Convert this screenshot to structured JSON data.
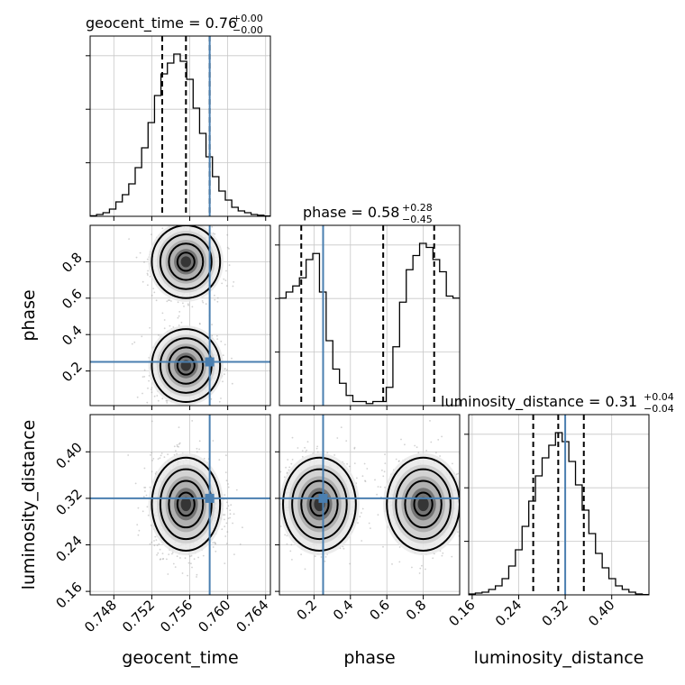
{
  "chart_data": {
    "type": "corner",
    "parameters": [
      "geocent_time",
      "phase",
      "luminosity_distance"
    ],
    "axis_labels": {
      "geocent_time": "geocent_time",
      "phase": "phase",
      "luminosity_distance": "luminosity_distance"
    },
    "titles": {
      "geocent_time": {
        "text": "geocent_time = 0.76",
        "sup": "+0.00",
        "sub": "−0.00"
      },
      "phase": {
        "text": "phase = 0.58",
        "sup": "+0.28",
        "sub": "−0.45"
      },
      "luminosity_distance": {
        "text": "luminosity_distance = 0.31",
        "sup": "+0.04",
        "sub": "−0.04"
      }
    },
    "ranges": {
      "geocent_time": [
        0.7455,
        0.7645
      ],
      "phase": [
        0.01,
        1.0
      ],
      "luminosity_distance": [
        0.154,
        0.464
      ]
    },
    "ticks": {
      "geocent_time": [
        0.748,
        0.752,
        0.756,
        0.76,
        0.764
      ],
      "phase": [
        0.2,
        0.4,
        0.6,
        0.8
      ],
      "luminosity_distance": [
        0.16,
        0.24,
        0.32,
        0.4
      ]
    },
    "tick_labels": {
      "geocent_time": [
        "0.748",
        "0.752",
        "0.756",
        "0.760",
        "0.764"
      ],
      "phase": [
        "0.2",
        "0.4",
        "0.6",
        "0.8"
      ],
      "luminosity_distance": [
        "0.16",
        "0.24",
        "0.32",
        "0.40"
      ]
    },
    "truths": {
      "geocent_time": 0.7581,
      "phase": 0.25,
      "luminosity_distance": 0.32
    },
    "quantiles": {
      "geocent_time": [
        0.7531,
        0.7556,
        0.7581
      ],
      "phase": [
        0.13,
        0.58,
        0.86
      ],
      "luminosity_distance": [
        0.265,
        0.308,
        0.352
      ]
    },
    "histograms": {
      "geocent_time": {
        "edges": [
          0.7455,
          0.7645
        ],
        "counts": [
          0.3,
          1,
          2,
          4,
          8,
          12,
          18,
          27,
          38,
          52,
          67,
          79,
          85,
          90,
          86,
          76,
          60,
          46,
          33,
          22,
          14,
          9,
          5,
          3,
          2,
          1,
          0.6,
          0.2
        ]
      },
      "phase": {
        "edges": [
          0.01,
          1.0
        ],
        "counts": [
          53,
          56,
          59,
          63,
          72,
          75,
          56,
          32,
          18,
          11,
          5,
          2,
          2,
          1,
          2,
          2,
          9,
          29,
          51,
          67,
          74,
          80,
          78,
          72,
          66,
          54,
          53
        ]
      },
      "luminosity_distance": {
        "edges": [
          0.154,
          0.464
        ],
        "counts": [
          0.5,
          1,
          1.5,
          3,
          5,
          9,
          16,
          25,
          38,
          52,
          66,
          76,
          83,
          90,
          85,
          74,
          61,
          47,
          34,
          23,
          15,
          9,
          5,
          3,
          1.5,
          0.5,
          0.2
        ]
      }
    },
    "grid": true
  }
}
